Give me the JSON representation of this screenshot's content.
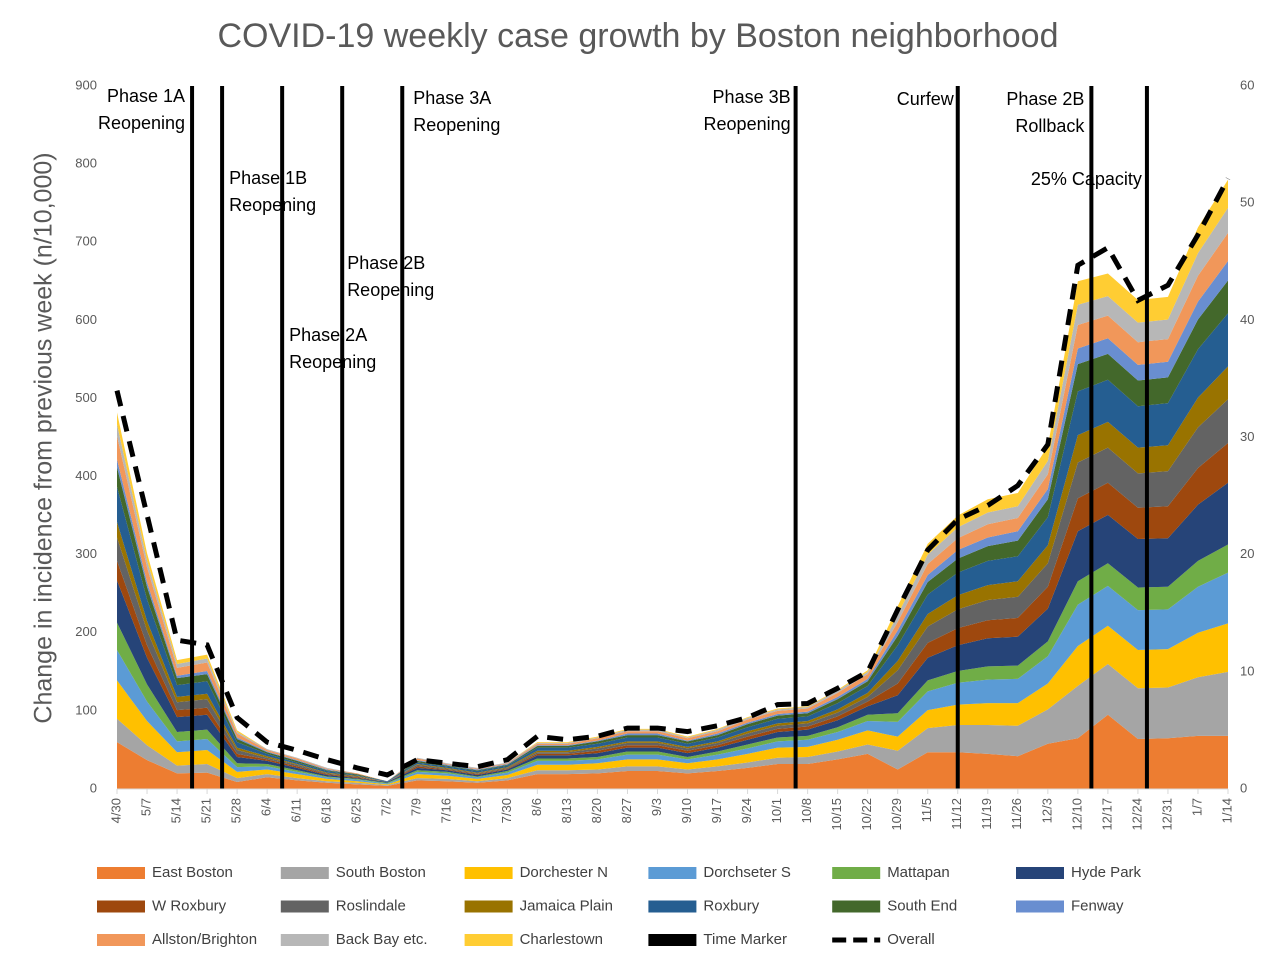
{
  "chart_data": {
    "type": "stacked_area",
    "title": "COVID-19 weekly case growth by Boston neighborhood",
    "y_label": "Change in incidence from previous week (n/10,000)",
    "categories": [
      "4/30",
      "5/7",
      "5/14",
      "5/21",
      "5/28",
      "6/4",
      "6/11",
      "6/18",
      "6/25",
      "7/2",
      "7/9",
      "7/16",
      "7/23",
      "7/30",
      "8/6",
      "8/13",
      "8/20",
      "8/27",
      "9/3",
      "9/10",
      "9/17",
      "9/24",
      "10/1",
      "10/8",
      "10/15",
      "10/22",
      "10/29",
      "11/5",
      "11/12",
      "11/19",
      "11/26",
      "12/3",
      "12/10",
      "12/17",
      "12/24",
      "12/31",
      "1/7",
      "1/14"
    ],
    "ylim": [
      0,
      900
    ],
    "yticks": [
      0,
      100,
      200,
      300,
      400,
      500,
      600,
      700,
      800,
      900
    ],
    "y2lim": [
      0,
      60
    ],
    "y2ticks": [
      0,
      10,
      20,
      30,
      40,
      50,
      60
    ],
    "series": [
      {
        "name": "East Boston",
        "color": "#ED7D31",
        "values": [
          60,
          37,
          20,
          21,
          9,
          15,
          11,
          8,
          6,
          4,
          11,
          10,
          8,
          11,
          19,
          19,
          20,
          23,
          23,
          20,
          23,
          27,
          32,
          32,
          38,
          45,
          25,
          47,
          47,
          45,
          42,
          58,
          65,
          95,
          64,
          65,
          68,
          68
        ]
      },
      {
        "name": "South Boston",
        "color": "#A5A5A5",
        "values": [
          30,
          19,
          10,
          11,
          5,
          4,
          3,
          2,
          2,
          1,
          3,
          3,
          2,
          3,
          5,
          5,
          5,
          6,
          6,
          5,
          6,
          7,
          8,
          9,
          10,
          12,
          24,
          31,
          35,
          37,
          39,
          44,
          67,
          65,
          65,
          65,
          75,
          82
        ]
      },
      {
        "name": "Dorchester N",
        "color": "#FFC000",
        "values": [
          49,
          31,
          17,
          18,
          8,
          6,
          5,
          3,
          2,
          1,
          5,
          4,
          3,
          4,
          7,
          7,
          8,
          9,
          9,
          8,
          9,
          11,
          13,
          13,
          15,
          18,
          18,
          23,
          26,
          28,
          29,
          33,
          51,
          49,
          49,
          49,
          57,
          62
        ]
      },
      {
        "name": "Dorchseter S",
        "color": "#5B9BD5",
        "values": [
          39,
          25,
          14,
          14,
          6,
          4,
          3,
          2,
          2,
          1,
          3,
          3,
          2,
          3,
          5,
          5,
          5,
          6,
          6,
          5,
          6,
          7,
          8,
          9,
          10,
          12,
          19,
          24,
          28,
          30,
          31,
          35,
          53,
          51,
          51,
          51,
          59,
          65
        ]
      },
      {
        "name": "Mattapan",
        "color": "#70AD47",
        "values": [
          35,
          22,
          12,
          12,
          5,
          3,
          2,
          1,
          1,
          1,
          2,
          2,
          1,
          2,
          3,
          3,
          3,
          4,
          4,
          3,
          4,
          5,
          5,
          5,
          6,
          8,
          11,
          14,
          15,
          17,
          17,
          19,
          30,
          29,
          29,
          29,
          33,
          36
        ]
      },
      {
        "name": "Hyde Park",
        "color": "#264478",
        "values": [
          54,
          34,
          19,
          19,
          8,
          4,
          3,
          2,
          1,
          1,
          3,
          2,
          2,
          2,
          4,
          4,
          5,
          5,
          5,
          5,
          5,
          6,
          7,
          8,
          9,
          11,
          23,
          29,
          33,
          36,
          37,
          42,
          64,
          62,
          62,
          62,
          72,
          79
        ]
      },
      {
        "name": "W Roxbury",
        "color": "#9E480E",
        "values": [
          25,
          16,
          9,
          9,
          4,
          2,
          2,
          1,
          1,
          0,
          2,
          1,
          1,
          1,
          2,
          2,
          3,
          3,
          3,
          3,
          3,
          4,
          4,
          4,
          5,
          6,
          15,
          19,
          22,
          23,
          24,
          28,
          42,
          41,
          40,
          41,
          47,
          51
        ]
      },
      {
        "name": "Roslindale",
        "color": "#636363",
        "values": [
          30,
          19,
          10,
          11,
          5,
          2,
          2,
          1,
          1,
          0,
          2,
          1,
          1,
          1,
          2,
          2,
          3,
          3,
          3,
          3,
          3,
          4,
          4,
          4,
          5,
          6,
          17,
          21,
          24,
          26,
          27,
          30,
          46,
          45,
          44,
          45,
          52,
          56
        ]
      },
      {
        "name": "Jamaica Plain",
        "color": "#997300",
        "values": [
          20,
          12,
          7,
          7,
          3,
          2,
          1,
          1,
          1,
          0,
          1,
          1,
          1,
          1,
          2,
          2,
          2,
          2,
          2,
          2,
          2,
          3,
          3,
          3,
          4,
          5,
          12,
          16,
          18,
          19,
          20,
          23,
          35,
          33,
          33,
          33,
          38,
          42
        ]
      },
      {
        "name": "Roxbury",
        "color": "#255E91",
        "values": [
          45,
          28,
          15,
          16,
          7,
          3,
          2,
          2,
          1,
          1,
          2,
          2,
          2,
          2,
          4,
          4,
          4,
          5,
          5,
          4,
          5,
          5,
          6,
          6,
          8,
          9,
          20,
          25,
          29,
          31,
          32,
          36,
          56,
          54,
          53,
          54,
          62,
          68
        ]
      },
      {
        "name": "South End",
        "color": "#43682B",
        "values": [
          25,
          16,
          9,
          9,
          4,
          2,
          2,
          1,
          1,
          0,
          2,
          1,
          1,
          1,
          2,
          2,
          3,
          3,
          3,
          3,
          3,
          4,
          4,
          4,
          5,
          6,
          12,
          16,
          18,
          19,
          20,
          23,
          35,
          33,
          33,
          33,
          38,
          42
        ]
      },
      {
        "name": "Fenway",
        "color": "#698ED0",
        "values": [
          10,
          6,
          3,
          4,
          2,
          1,
          1,
          1,
          0,
          0,
          1,
          1,
          1,
          1,
          1,
          1,
          1,
          2,
          2,
          1,
          2,
          2,
          2,
          2,
          3,
          3,
          7,
          9,
          11,
          11,
          12,
          13,
          20,
          20,
          20,
          20,
          23,
          25
        ]
      },
      {
        "name": "Allston/Brighton",
        "color": "#F1975A",
        "values": [
          30,
          19,
          10,
          11,
          5,
          2,
          2,
          1,
          1,
          0,
          2,
          1,
          1,
          1,
          2,
          2,
          3,
          3,
          3,
          3,
          3,
          4,
          4,
          4,
          5,
          6,
          11,
          14,
          15,
          17,
          17,
          19,
          30,
          29,
          29,
          29,
          33,
          36
        ]
      },
      {
        "name": "Back Bay etc.",
        "color": "#B7B7B7",
        "values": [
          15,
          9,
          5,
          5,
          2,
          1,
          1,
          1,
          0,
          0,
          1,
          1,
          1,
          1,
          1,
          1,
          1,
          2,
          2,
          1,
          2,
          2,
          2,
          2,
          3,
          3,
          9,
          12,
          14,
          15,
          15,
          17,
          26,
          25,
          25,
          25,
          29,
          32
        ]
      },
      {
        "name": "Charlestown",
        "color": "#FFCD33",
        "values": [
          15,
          9,
          5,
          5,
          2,
          0,
          0,
          0,
          0,
          0,
          0,
          0,
          0,
          0,
          1,
          1,
          1,
          1,
          1,
          1,
          1,
          1,
          1,
          1,
          1,
          2,
          11,
          14,
          15,
          17,
          17,
          19,
          30,
          29,
          29,
          29,
          33,
          36
        ]
      },
      {
        "name": "Overall",
        "color": "#000000",
        "axis": "y2",
        "dashed": true,
        "values": [
          34,
          23.4,
          12.7,
          12.3,
          6.1,
          4.0,
          3.3,
          2.5,
          1.8,
          1.2,
          2.5,
          2.2,
          1.9,
          2.5,
          4.5,
          4.2,
          4.5,
          5.2,
          5.2,
          4.9,
          5.4,
          6.1,
          7.2,
          7.3,
          8.6,
          10.0,
          15.3,
          20.4,
          23.0,
          24.2,
          25.9,
          29.4,
          44.7,
          46.2,
          41.7,
          43.0,
          47.3,
          52.1
        ]
      }
    ],
    "time_markers": {
      "name": "Time Marker",
      "color": "#000000",
      "positions": [
        2.5,
        3.5,
        5.5,
        7.5,
        9.5,
        22.6,
        28,
        32.45,
        34.3
      ],
      "labels": [
        [
          "Phase 1A",
          "Reopening"
        ],
        [
          "Phase 1B",
          "Reopening"
        ],
        [
          "Phase 2A",
          "Reopening"
        ],
        [
          "Phase 2B",
          "Reopening"
        ],
        [
          "Phase 3A",
          "Reopening"
        ],
        [
          "Phase 3B",
          "Reopening"
        ],
        [
          "Curfew"
        ],
        [
          "Phase 2B",
          "Rollback"
        ],
        [
          "25% Capacity"
        ]
      ]
    }
  }
}
